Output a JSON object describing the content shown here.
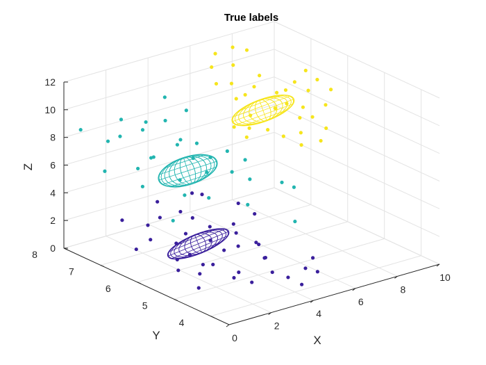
{
  "chart_data": {
    "type": "scatter3d",
    "title": "True labels",
    "xlabel": "X",
    "ylabel": "Y",
    "zlabel": "Z",
    "xlim": [
      0,
      10
    ],
    "ylim": [
      3.5,
      8
    ],
    "zlim": [
      0,
      12
    ],
    "x_ticks": [
      "0",
      "2",
      "4",
      "6",
      "8",
      "10"
    ],
    "y_ticks": [
      "4",
      "5",
      "6",
      "7",
      "8"
    ],
    "z_ticks": [
      "0",
      "2",
      "4",
      "6",
      "8",
      "10",
      "12"
    ],
    "grid": true,
    "colors": {
      "cluster1": "#3a1f9c",
      "cluster2": "#22b5b0",
      "cluster3": "#f6e51d"
    },
    "series": [
      {
        "color": "#3a1f9c",
        "ellipsoid": {
          "center": [
            2.2,
            5.6,
            2.3
          ],
          "radii": [
            1.5,
            0.3,
            0.7
          ],
          "rotation_deg": -22
        },
        "points": [
          [
            0.9,
            5.4,
            1.2
          ],
          [
            1.2,
            5.6,
            1.6
          ],
          [
            1.5,
            5.8,
            2.4
          ],
          [
            1.8,
            5.6,
            1.7
          ],
          [
            2.2,
            5.2,
            1.3
          ],
          [
            2.6,
            5.5,
            2.5
          ],
          [
            2.9,
            5.3,
            1.9
          ],
          [
            3.1,
            5.8,
            2.9
          ],
          [
            3.4,
            5.2,
            2.1
          ],
          [
            3.7,
            5.5,
            3.2
          ],
          [
            4.0,
            5.6,
            2.3
          ],
          [
            4.3,
            5.0,
            1.1
          ],
          [
            4.6,
            5.4,
            1.6
          ],
          [
            3.0,
            4.6,
            0.4
          ],
          [
            2.5,
            4.8,
            0.7
          ],
          [
            3.8,
            4.5,
            0.9
          ],
          [
            4.2,
            4.3,
            0.6
          ],
          [
            4.5,
            4.1,
            0.2
          ],
          [
            5.2,
            4.4,
            0.7
          ],
          [
            5.6,
            4.3,
            0.4
          ],
          [
            5.9,
            4.6,
            0.9
          ],
          [
            1.6,
            6.3,
            3.6
          ],
          [
            1.2,
            6.4,
            3.1
          ],
          [
            2.4,
            6.2,
            3.8
          ],
          [
            2.0,
            6.6,
            4.2
          ],
          [
            0.5,
            6.7,
            3.4
          ],
          [
            0.3,
            6.2,
            2.0
          ],
          [
            1.0,
            4.9,
            0.5
          ],
          [
            3.3,
            6.4,
            4.5
          ],
          [
            4.8,
            6.0,
            3.6
          ],
          [
            4.9,
            5.5,
            1.2
          ],
          [
            5.4,
            5.9,
            2.7
          ],
          [
            2.8,
            6.1,
            3.3
          ],
          [
            1.4,
            5.1,
            1.1
          ],
          [
            3.6,
            6.3,
            4.4
          ],
          [
            2.3,
            6.0,
            2.5
          ],
          [
            0.8,
            6.1,
            2.6
          ],
          [
            2.9,
            4.9,
            0.8
          ],
          [
            4.0,
            4.8,
            1.5
          ],
          [
            1.9,
            5.3,
            1.3
          ]
        ]
      },
      {
        "color": "#22b5b0",
        "ellipsoid": {
          "center": [
            2.4,
            6.0,
            7.0
          ],
          "radii": [
            1.4,
            0.35,
            1.0
          ],
          "rotation_deg": -18
        },
        "points": [
          [
            0.6,
            6.2,
            6.4
          ],
          [
            0.9,
            6.5,
            7.2
          ],
          [
            1.3,
            6.3,
            8.1
          ],
          [
            1.7,
            6.6,
            7.5
          ],
          [
            2.2,
            6.1,
            6.3
          ],
          [
            2.6,
            6.4,
            8.3
          ],
          [
            3.0,
            6.2,
            7.4
          ],
          [
            3.3,
            6.0,
            6.5
          ],
          [
            3.7,
            6.5,
            7.8
          ],
          [
            4.0,
            6.3,
            6.9
          ],
          [
            2.9,
            6.9,
            9.3
          ],
          [
            2.5,
            7.2,
            9.0
          ],
          [
            2.0,
            7.0,
            8.9
          ],
          [
            1.5,
            7.3,
            9.5
          ],
          [
            1.1,
            7.1,
            8.7
          ],
          [
            0.7,
            7.2,
            8.4
          ],
          [
            0.2,
            7.0,
            6.7
          ],
          [
            0.1,
            7.6,
            9.0
          ],
          [
            3.4,
            7.2,
            10.4
          ],
          [
            3.9,
            6.9,
            9.6
          ],
          [
            4.5,
            6.0,
            6.0
          ],
          [
            4.8,
            6.3,
            7.0
          ],
          [
            4.2,
            5.4,
            4.5
          ],
          [
            5.0,
            5.8,
            5.5
          ],
          [
            5.3,
            6.1,
            6.4
          ],
          [
            2.7,
            5.6,
            5.4
          ],
          [
            1.9,
            5.8,
            5.7
          ],
          [
            1.0,
            5.6,
            4.5
          ],
          [
            6.0,
            5.5,
            5.2
          ],
          [
            5.4,
            4.8,
            3.5
          ],
          [
            3.1,
            6.6,
            8.2
          ],
          [
            6.4,
            5.4,
            4.8
          ]
        ]
      },
      {
        "color": "#f6e51d",
        "ellipsoid": {
          "center": [
            6.5,
            6.3,
            9.2
          ],
          "radii": [
            1.5,
            0.35,
            0.8
          ],
          "rotation_deg": -20
        },
        "points": [
          [
            4.8,
            6.6,
            11.5
          ],
          [
            5.1,
            6.9,
            12.2
          ],
          [
            5.4,
            6.4,
            10.4
          ],
          [
            5.7,
            6.7,
            11.0
          ],
          [
            6.0,
            6.5,
            10.3
          ],
          [
            6.3,
            7.0,
            11.7
          ],
          [
            6.6,
            6.6,
            10.5
          ],
          [
            6.9,
            6.2,
            9.3
          ],
          [
            7.2,
            6.8,
            10.8
          ],
          [
            7.5,
            6.5,
            9.8
          ],
          [
            7.8,
            6.4,
            9.0
          ],
          [
            8.1,
            6.6,
            9.6
          ],
          [
            8.4,
            6.3,
            8.6
          ],
          [
            8.7,
            6.7,
            9.8
          ],
          [
            9.0,
            6.5,
            9.3
          ],
          [
            9.3,
            6.2,
            8.5
          ],
          [
            8.8,
            5.9,
            7.4
          ],
          [
            8.2,
            5.7,
            7.0
          ],
          [
            7.6,
            5.9,
            7.6
          ],
          [
            7.1,
            5.6,
            7.3
          ],
          [
            6.6,
            5.8,
            7.9
          ],
          [
            6.2,
            6.0,
            8.3
          ],
          [
            5.9,
            6.3,
            9.1
          ],
          [
            5.5,
            6.1,
            8.6
          ],
          [
            5.2,
            6.0,
            8.2
          ],
          [
            9.6,
            6.6,
            9.7
          ],
          [
            9.9,
            6.4,
            9.1
          ],
          [
            7.3,
            7.2,
            12.1
          ],
          [
            6.8,
            7.3,
            12.4
          ],
          [
            4.6,
            6.0,
            9.2
          ],
          [
            7.9,
            6.1,
            8.3
          ],
          [
            8.5,
            6.1,
            8.1
          ],
          [
            9.4,
            6.8,
            10.2
          ],
          [
            5.8,
            7.2,
            12.5
          ]
        ]
      }
    ]
  }
}
